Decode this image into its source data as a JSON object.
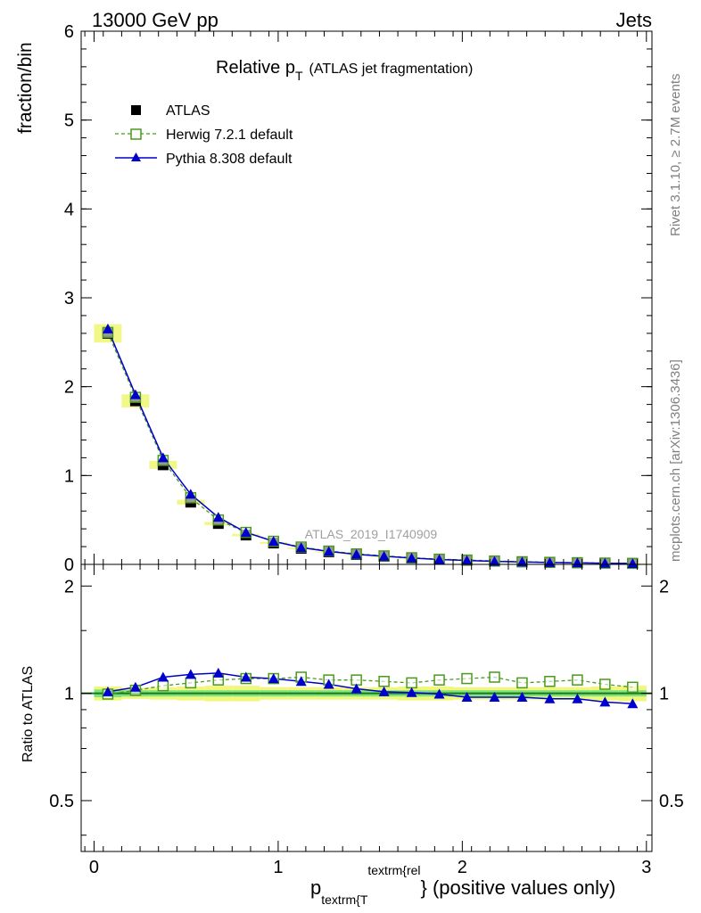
{
  "header": {
    "left": "13000 GeV pp",
    "right": "Jets"
  },
  "side_texts": {
    "rivet": "Rivet 3.1.10, ≥ 2.7M events",
    "mcplots": "mcplots.cern.ch [arXiv:1306.3436]"
  },
  "colors": {
    "atlas": "#000000",
    "herwig": "#4a9a1e",
    "pythia": "#0000cc",
    "band_inner": "#7ee27e",
    "band_outer": "#f0f77a"
  },
  "chart_data": [
    {
      "type": "line",
      "title_main": "Relative p",
      "title_sub": "T",
      "title_rest": "(ATLAS jet fragmentation)",
      "ylabel": "fraction/bin",
      "watermark": "ATLAS_2019_I1740909",
      "xlim": [
        -0.07,
        3.03
      ],
      "ylim": [
        0,
        6
      ],
      "yticks": [
        0,
        1,
        2,
        3,
        4,
        5,
        6
      ],
      "x": [
        0.075,
        0.225,
        0.375,
        0.525,
        0.675,
        0.825,
        0.975,
        1.125,
        1.275,
        1.425,
        1.575,
        1.725,
        1.875,
        2.025,
        2.175,
        2.325,
        2.475,
        2.625,
        2.775,
        2.925
      ],
      "legend": [
        "ATLAS",
        "Herwig 7.2.1 default",
        "Pythia 8.308 default"
      ],
      "series": [
        {
          "name": "ATLAS",
          "values": [
            2.6,
            1.84,
            1.12,
            0.7,
            0.46,
            0.33,
            0.24,
            0.18,
            0.14,
            0.11,
            0.09,
            0.07,
            0.055,
            0.045,
            0.035,
            0.028,
            0.022,
            0.018,
            0.014,
            0.011
          ]
        },
        {
          "name": "Herwig 7.2.1 default",
          "values": [
            2.61,
            1.88,
            1.17,
            0.75,
            0.5,
            0.36,
            0.26,
            0.195,
            0.15,
            0.118,
            0.096,
            0.075,
            0.059,
            0.049,
            0.038,
            0.03,
            0.023,
            0.019,
            0.015,
            0.0115
          ]
        },
        {
          "name": "Pythia 8.308 default",
          "values": [
            2.65,
            1.91,
            1.2,
            0.79,
            0.53,
            0.36,
            0.26,
            0.19,
            0.145,
            0.113,
            0.091,
            0.071,
            0.055,
            0.044,
            0.034,
            0.027,
            0.021,
            0.017,
            0.013,
            0.01
          ]
        }
      ]
    },
    {
      "type": "line",
      "ylabel": "Ratio to ATLAS",
      "xlabel_main": "p",
      "xlabel_sub": "textrm{T",
      "xlabel_sup": "textrm{rel",
      "xlabel_rest": "} (positive values only)",
      "xlim": [
        -0.07,
        3.03
      ],
      "ylim": [
        0.36,
        2.3
      ],
      "yscale": "log",
      "yticks": [
        0.5,
        1,
        2
      ],
      "xticks": [
        0,
        1,
        2,
        3
      ],
      "x": [
        0.075,
        0.225,
        0.375,
        0.525,
        0.675,
        0.825,
        0.975,
        1.125,
        1.275,
        1.425,
        1.575,
        1.725,
        1.875,
        2.025,
        2.175,
        2.325,
        2.475,
        2.625,
        2.775,
        2.925
      ],
      "band_inner": [
        0.025,
        0.02,
        0.02,
        0.02,
        0.02,
        0.02,
        0.02,
        0.02,
        0.02,
        0.02,
        0.02,
        0.02,
        0.02,
        0.02,
        0.02,
        0.02,
        0.02,
        0.02,
        0.02,
        0.02
      ],
      "band_outer": [
        0.045,
        0.035,
        0.04,
        0.045,
        0.05,
        0.05,
        0.04,
        0.04,
        0.04,
        0.04,
        0.04,
        0.045,
        0.045,
        0.04,
        0.04,
        0.04,
        0.04,
        0.04,
        0.045,
        0.05
      ],
      "series": [
        {
          "name": "Herwig 7.2.1 default",
          "values": [
            0.995,
            1.02,
            1.05,
            1.07,
            1.09,
            1.1,
            1.1,
            1.11,
            1.09,
            1.09,
            1.08,
            1.07,
            1.09,
            1.1,
            1.11,
            1.07,
            1.08,
            1.09,
            1.06,
            1.04
          ]
        },
        {
          "name": "Pythia 8.308 default",
          "values": [
            1.01,
            1.04,
            1.11,
            1.13,
            1.14,
            1.11,
            1.1,
            1.08,
            1.06,
            1.03,
            1.01,
            1.005,
            0.995,
            0.975,
            0.975,
            0.975,
            0.965,
            0.965,
            0.945,
            0.935
          ]
        }
      ]
    }
  ]
}
